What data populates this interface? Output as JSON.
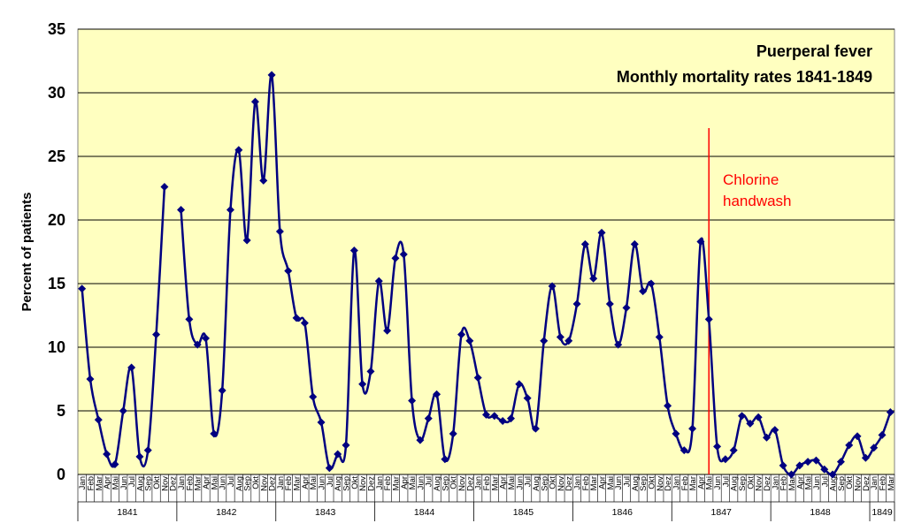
{
  "chart_data": {
    "type": "line",
    "title": "Puerperal fever",
    "subtitle": "Monthly mortality rates 1841-1849",
    "ylabel": "Percent of patients",
    "xlabel": "",
    "ylim": [
      0,
      35
    ],
    "yticks": [
      0,
      5,
      10,
      15,
      20,
      25,
      30,
      35
    ],
    "grid": true,
    "colors": {
      "plot_background": "#ffffc0",
      "line": "#000080",
      "annotation": "#ff0000"
    },
    "month_labels": [
      "Jan",
      "Feb",
      "Mar",
      "Apr",
      "Mai",
      "Jun",
      "Jul",
      "Aug",
      "Sep",
      "Okt",
      "Nov",
      "Dez",
      "Jan",
      "Feb",
      "Mar",
      "Apr",
      "Mai",
      "Jun",
      "Jul",
      "Aug",
      "Sep",
      "Okt",
      "Nov",
      "Dez",
      "Jan",
      "Feb",
      "Mar",
      "Apr",
      "Mai",
      "Jun",
      "Jul",
      "Aug",
      "Sep",
      "Okt",
      "Nov",
      "Dez",
      "Jan",
      "Feb",
      "Mar",
      "Apr",
      "Mai",
      "Jun",
      "Jul",
      "Aug",
      "Sep",
      "Okt",
      "Nov",
      "Dez",
      "Jan",
      "Feb",
      "Mar",
      "Apr",
      "Mai",
      "Jun",
      "Jul",
      "Aug",
      "Sep",
      "Okt",
      "Nov",
      "Dez",
      "Jan",
      "Feb",
      "Mar",
      "Apr",
      "Mai",
      "Jun",
      "Jul",
      "Aug",
      "Sep",
      "Okt",
      "Nov",
      "Dez",
      "Jan",
      "Feb",
      "Mar",
      "Apr",
      "Mai",
      "Jun",
      "Jul",
      "Aug",
      "Sep",
      "Okt",
      "Nov",
      "Dez",
      "Jan",
      "Feb",
      "Mar",
      "Apr",
      "Mai",
      "Jun",
      "Jul",
      "Aug",
      "Sep",
      "Okt",
      "Nov",
      "Dez",
      "Jan",
      "Feb",
      "Mar"
    ],
    "years": [
      {
        "label": "1841",
        "months": 12
      },
      {
        "label": "1842",
        "months": 12
      },
      {
        "label": "1843",
        "months": 12
      },
      {
        "label": "1844",
        "months": 12
      },
      {
        "label": "1845",
        "months": 12
      },
      {
        "label": "1846",
        "months": 12
      },
      {
        "label": "1847",
        "months": 12
      },
      {
        "label": "1848",
        "months": 12
      },
      {
        "label": "1849",
        "months": 3
      }
    ],
    "series": [
      {
        "values": [
          14.6,
          7.5,
          4.3,
          1.6,
          0.8,
          5.0,
          8.4,
          1.4,
          1.9,
          11.0,
          22.6,
          null,
          20.8,
          12.2,
          10.2,
          10.7,
          3.2,
          6.6,
          20.8,
          25.5,
          18.4,
          29.3,
          23.1,
          31.4,
          19.1,
          16.0,
          12.3,
          11.9,
          6.1,
          4.1,
          0.5,
          1.6,
          2.3,
          17.6,
          7.1,
          8.1,
          15.2,
          11.3,
          17.0,
          17.3,
          5.8,
          2.7,
          4.4,
          6.3,
          1.2,
          3.2,
          11.0,
          10.5,
          7.6,
          4.7,
          4.6,
          4.2,
          4.4,
          7.1,
          6.0,
          3.6,
          10.5,
          14.8,
          10.8,
          10.5,
          13.4,
          18.1,
          15.4,
          19.0,
          13.4,
          10.2,
          13.1,
          18.1,
          14.4,
          15.0,
          10.8,
          5.4,
          3.2,
          1.9,
          3.6,
          18.3,
          12.2,
          2.2,
          1.2,
          1.9,
          4.6,
          4.0,
          4.5,
          2.9,
          3.5,
          0.7,
          0.0,
          0.7,
          1.0,
          1.1,
          0.4,
          0.0,
          1.0,
          2.3,
          3.0,
          1.3,
          2.1,
          3.1,
          4.9
        ]
      }
    ],
    "annotations": [
      {
        "text_line1": "Chlorine",
        "text_line2": "handwash",
        "at_index": 76,
        "style": "vertical red line"
      }
    ]
  }
}
